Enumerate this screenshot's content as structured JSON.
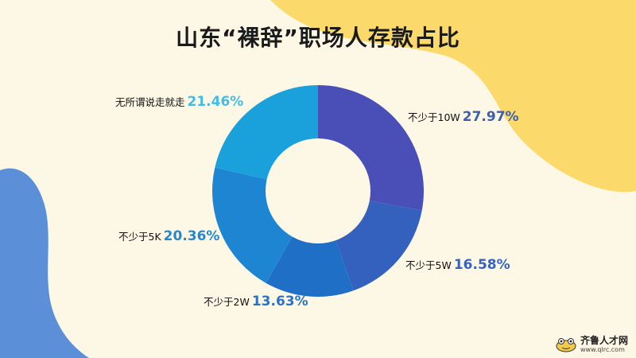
{
  "title": "山东“裸辞”职场人存款占比",
  "chart_data": {
    "type": "pie",
    "donut": true,
    "start_angle_deg": 0,
    "direction": "clockwise",
    "slices": [
      {
        "label": "不少于10W",
        "value": 27.97,
        "display": "27.97%",
        "color": "#4a4fb8",
        "label_color": "#3c5fb2"
      },
      {
        "label": "不少于5W",
        "value": 16.58,
        "display": "16.58%",
        "color": "#3561be",
        "label_color": "#3563be"
      },
      {
        "label": "不少于2W",
        "value": 13.63,
        "display": "13.63%",
        "color": "#1f6fc6",
        "label_color": "#2a72c4"
      },
      {
        "label": "不少于5K",
        "value": 20.36,
        "display": "20.36%",
        "color": "#1e85d2",
        "label_color": "#2388d0"
      },
      {
        "label": "无所谓说走就走",
        "value": 21.46,
        "display": "21.46%",
        "color": "#1aa1dc",
        "label_color": "#40bde8"
      }
    ]
  },
  "watermark": {
    "name": "齐鲁人才网",
    "url": "www.qlrc.com"
  }
}
